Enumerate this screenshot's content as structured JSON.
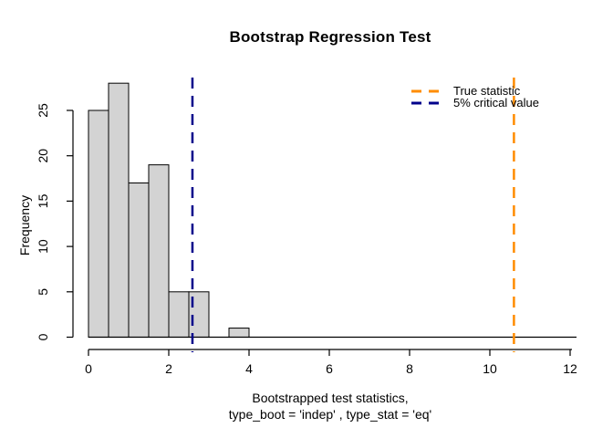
{
  "title": "Bootstrap Regression Test",
  "chart_data": {
    "type": "bar",
    "subtype": "histogram",
    "title": "Bootstrap Regression Test",
    "xlabel_line1": "Bootstrapped test statistics,",
    "xlabel_line2": "type_boot = 'indep' , type_stat = 'eq'",
    "ylabel": "Frequency",
    "xlim": [
      0,
      12
    ],
    "ylim": [
      0,
      28
    ],
    "grid": false,
    "bar_fill": "#D3D3D3",
    "bar_stroke": "#000000",
    "bin_width": 0.5,
    "bins": [
      {
        "x0": 0.0,
        "x1": 0.5,
        "count": 25
      },
      {
        "x0": 0.5,
        "x1": 1.0,
        "count": 28
      },
      {
        "x0": 1.0,
        "x1": 1.5,
        "count": 17
      },
      {
        "x0": 1.5,
        "x1": 2.0,
        "count": 19
      },
      {
        "x0": 2.0,
        "x1": 2.5,
        "count": 5
      },
      {
        "x0": 2.5,
        "x1": 3.0,
        "count": 5
      },
      {
        "x0": 3.0,
        "x1": 3.5,
        "count": 0
      },
      {
        "x0": 3.5,
        "x1": 4.0,
        "count": 1
      }
    ],
    "x_ticks": [
      0,
      2,
      4,
      6,
      8,
      10,
      12
    ],
    "y_ticks": [
      0,
      5,
      10,
      15,
      20,
      25
    ],
    "vlines": [
      {
        "name": "true-statistic",
        "x": 10.6,
        "label": "True statistic",
        "color": "#FF8C00",
        "style": "dashed"
      },
      {
        "name": "critical-value",
        "x": 2.59,
        "label": "5% critical value",
        "color": "#00008B",
        "style": "dashed"
      }
    ],
    "legend_position": "topright"
  }
}
